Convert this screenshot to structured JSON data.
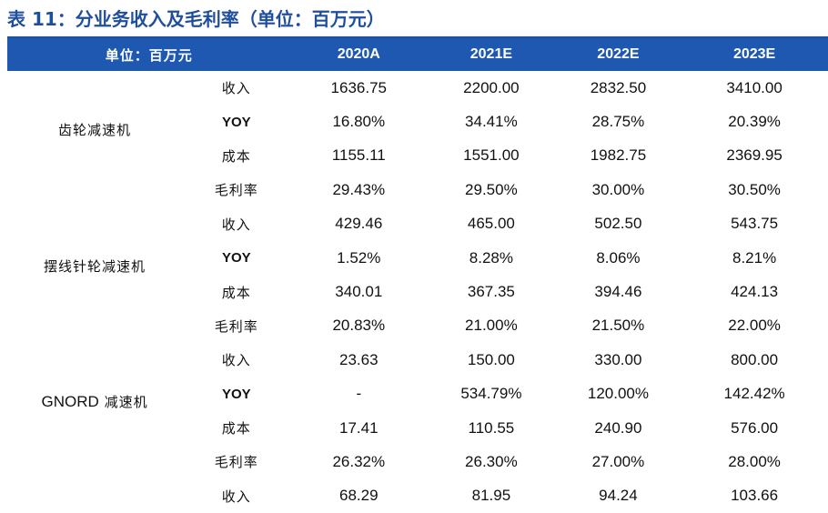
{
  "title": "表 11：分业务收入及毛利率（单位：百万元）",
  "header": {
    "unit_label": "单位：百万元",
    "years": [
      "2020A",
      "2021E",
      "2022E",
      "2023E"
    ]
  },
  "colors": {
    "title": "#1f4e9c",
    "header_bg": "#1e58b0",
    "header_text": "#ffffff"
  },
  "segments": [
    {
      "name": "齿轮减速机",
      "rows": [
        {
          "metric": "收入",
          "values": [
            "1636.75",
            "2200.00",
            "2832.50",
            "3410.00"
          ]
        },
        {
          "metric": "YOY",
          "values": [
            "16.80%",
            "34.41%",
            "28.75%",
            "20.39%"
          ]
        },
        {
          "metric": "成本",
          "values": [
            "1155.11",
            "1551.00",
            "1982.75",
            "2369.95"
          ]
        },
        {
          "metric": "毛利率",
          "values": [
            "29.43%",
            "29.50%",
            "30.00%",
            "30.50%"
          ]
        }
      ]
    },
    {
      "name": "摆线针轮减速机",
      "rows": [
        {
          "metric": "收入",
          "values": [
            "429.46",
            "465.00",
            "502.50",
            "543.75"
          ]
        },
        {
          "metric": "YOY",
          "values": [
            "1.52%",
            "8.28%",
            "8.06%",
            "8.21%"
          ]
        },
        {
          "metric": "成本",
          "values": [
            "340.01",
            "367.35",
            "394.46",
            "424.13"
          ]
        },
        {
          "metric": "毛利率",
          "values": [
            "20.83%",
            "21.00%",
            "21.50%",
            "22.00%"
          ]
        }
      ]
    },
    {
      "name_latin": "GNORD",
      "name_cjk": "减速机",
      "rows": [
        {
          "metric": "收入",
          "values": [
            "23.63",
            "150.00",
            "330.00",
            "800.00"
          ]
        },
        {
          "metric": "YOY",
          "values": [
            "-",
            "534.79%",
            "120.00%",
            "142.42%"
          ]
        },
        {
          "metric": "成本",
          "values": [
            "17.41",
            "110.55",
            "240.90",
            "576.00"
          ]
        },
        {
          "metric": "毛利率",
          "values": [
            "26.32%",
            "26.30%",
            "27.00%",
            "28.00%"
          ]
        }
      ]
    },
    {
      "name": "",
      "rows": [
        {
          "metric": "收入",
          "values": [
            "68.29",
            "81.95",
            "94.24",
            "103.66"
          ]
        }
      ]
    }
  ]
}
